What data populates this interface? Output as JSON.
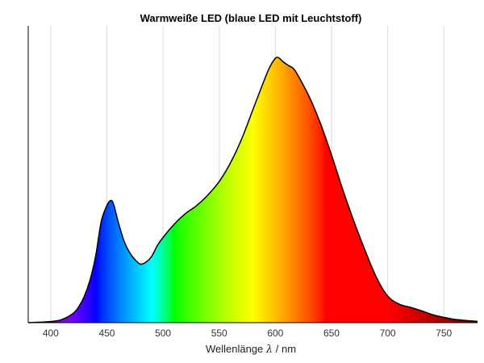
{
  "chart_data": {
    "type": "area",
    "title": "Warmweiße LED (blaue LED mit Leuchtstoff)",
    "xlabel_prefix": "Wellenlänge ",
    "xlabel_symbol": "λ",
    "xlabel_suffix": " / nm",
    "xlim": [
      380,
      780
    ],
    "ylim": [
      0,
      1.0
    ],
    "x_ticks": [
      400,
      450,
      500,
      550,
      600,
      650,
      700,
      750
    ],
    "grid": true,
    "fill": "visible spectrum (wavelength colour)",
    "curve_color": "#000000",
    "series": [
      {
        "x": [
          380,
          390,
          400,
          410,
          420,
          425,
          430,
          435,
          440,
          445,
          450,
          453,
          455,
          457,
          460,
          465,
          470,
          475,
          480,
          485,
          490,
          495,
          500,
          510,
          520,
          530,
          540,
          550,
          560,
          570,
          580,
          590,
          595,
          600,
          603,
          607,
          612,
          616,
          620,
          630,
          640,
          650,
          660,
          670,
          680,
          690,
          700,
          710,
          720,
          730,
          740,
          750,
          760,
          770,
          780
        ],
        "y": [
          0.0,
          0.002,
          0.004,
          0.012,
          0.035,
          0.06,
          0.1,
          0.16,
          0.25,
          0.38,
          0.44,
          0.458,
          0.455,
          0.43,
          0.38,
          0.31,
          0.265,
          0.237,
          0.22,
          0.228,
          0.25,
          0.29,
          0.32,
          0.37,
          0.41,
          0.44,
          0.48,
          0.53,
          0.6,
          0.69,
          0.8,
          0.91,
          0.96,
          0.993,
          0.995,
          0.98,
          0.965,
          0.955,
          0.93,
          0.85,
          0.75,
          0.63,
          0.5,
          0.38,
          0.27,
          0.17,
          0.1,
          0.07,
          0.058,
          0.045,
          0.03,
          0.02,
          0.012,
          0.008,
          0.005
        ]
      }
    ]
  }
}
